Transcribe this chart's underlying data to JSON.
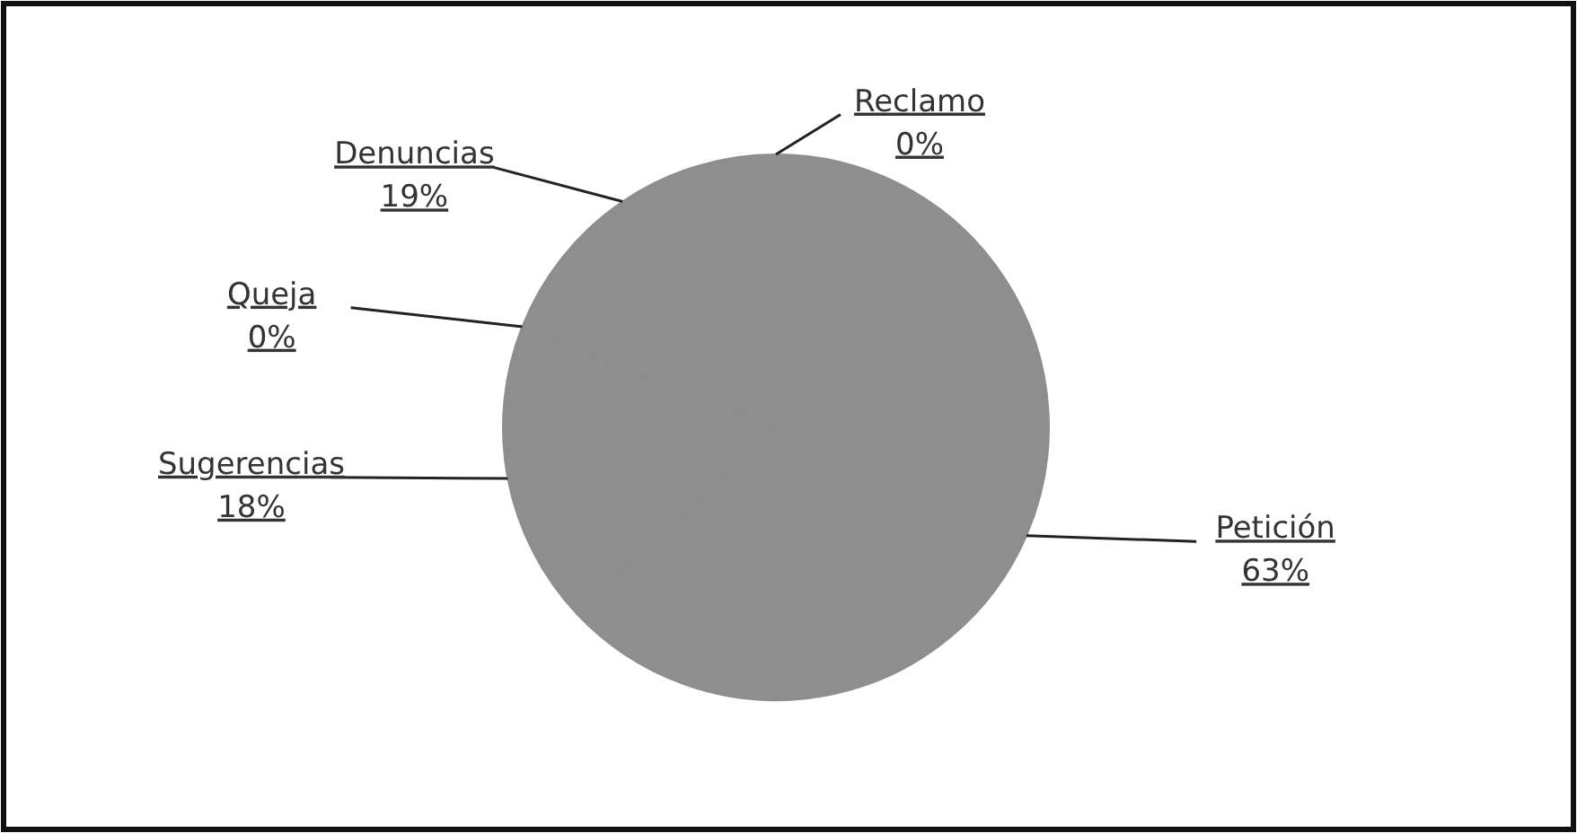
{
  "chart_data": {
    "type": "pie",
    "categories": [
      "Reclamo",
      "Petición",
      "Sugerencias",
      "Queja",
      "Denuncias"
    ],
    "values": [
      0,
      63,
      18,
      0,
      19
    ],
    "value_labels": [
      "0%",
      "63%",
      "18%",
      "0%",
      "19%"
    ],
    "colors": [
      "#8e8e8e",
      "#8e8e8e",
      "#8e8e8e",
      "#8e8e8e",
      "#8e8e8e"
    ],
    "legend": false
  }
}
